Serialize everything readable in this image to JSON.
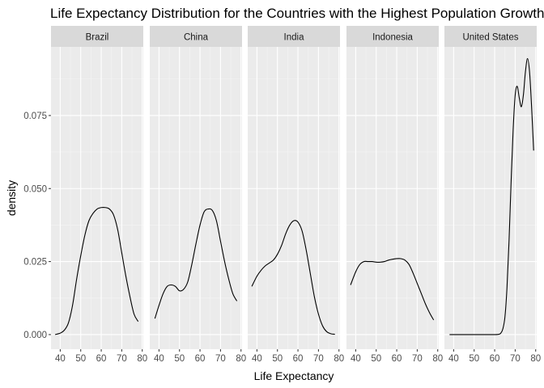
{
  "chart_data": {
    "type": "line",
    "title": "Life Expectancy Distribution for the Countries with the Highest Population Growth",
    "xlabel": "Life Expectancy",
    "ylabel": "density",
    "xlim": [
      35.5,
      80.5
    ],
    "ylim": [
      -0.005,
      0.0985
    ],
    "x_ticks": [
      40,
      50,
      60,
      70,
      80
    ],
    "y_ticks": [
      0.0,
      0.025,
      0.05,
      0.075
    ],
    "y_tick_labels": [
      "0.000",
      "0.025",
      "0.050",
      "0.075"
    ],
    "grid": true,
    "facets": [
      {
        "name": "Brazil",
        "x": [
          37.5,
          40,
          42,
          44,
          46,
          48,
          50,
          52,
          54,
          56,
          58,
          60,
          62,
          64,
          66,
          68,
          70,
          72,
          74,
          76,
          78
        ],
        "y": [
          0.0,
          0.0005,
          0.0015,
          0.004,
          0.01,
          0.019,
          0.027,
          0.034,
          0.039,
          0.0415,
          0.043,
          0.0435,
          0.0435,
          0.043,
          0.041,
          0.036,
          0.028,
          0.02,
          0.013,
          0.007,
          0.0045
        ]
      },
      {
        "name": "China",
        "x": [
          38,
          40,
          42,
          44,
          46,
          48,
          50,
          52,
          54,
          56,
          58,
          60,
          62,
          64,
          66,
          68,
          70,
          72,
          74,
          76,
          78
        ],
        "y": [
          0.0055,
          0.01,
          0.014,
          0.0165,
          0.017,
          0.0165,
          0.015,
          0.0155,
          0.018,
          0.024,
          0.031,
          0.0375,
          0.042,
          0.043,
          0.0425,
          0.039,
          0.032,
          0.025,
          0.019,
          0.014,
          0.0115
        ]
      },
      {
        "name": "India",
        "x": [
          37.5,
          40,
          42,
          44,
          46,
          48,
          50,
          52,
          54,
          56,
          58,
          60,
          62,
          64,
          66,
          68,
          70,
          72,
          74,
          76,
          78
        ],
        "y": [
          0.0165,
          0.02,
          0.022,
          0.0235,
          0.0245,
          0.0255,
          0.0275,
          0.0305,
          0.0345,
          0.0375,
          0.039,
          0.0385,
          0.0355,
          0.029,
          0.021,
          0.013,
          0.007,
          0.003,
          0.001,
          0.0003,
          0.0001
        ]
      },
      {
        "name": "Indonesia",
        "x": [
          37.5,
          40,
          42,
          44,
          46,
          48,
          50,
          52,
          54,
          56,
          58,
          60,
          62,
          64,
          66,
          68,
          70,
          72,
          74,
          76,
          78
        ],
        "y": [
          0.017,
          0.0215,
          0.024,
          0.025,
          0.025,
          0.025,
          0.0248,
          0.0248,
          0.025,
          0.0255,
          0.0258,
          0.026,
          0.026,
          0.0255,
          0.024,
          0.021,
          0.0175,
          0.014,
          0.0105,
          0.0075,
          0.005
        ]
      },
      {
        "name": "United States",
        "x": [
          38,
          45,
          50,
          55,
          60,
          62,
          63,
          64,
          65,
          66,
          67,
          68,
          69,
          70,
          71,
          72,
          73,
          74,
          75,
          76,
          77,
          78,
          79
        ],
        "y": [
          0.0,
          0.0,
          0.0,
          0.0,
          0.0,
          0.0001,
          0.0005,
          0.002,
          0.006,
          0.016,
          0.032,
          0.052,
          0.07,
          0.082,
          0.085,
          0.081,
          0.078,
          0.082,
          0.09,
          0.0945,
          0.09,
          0.078,
          0.063
        ]
      }
    ]
  }
}
